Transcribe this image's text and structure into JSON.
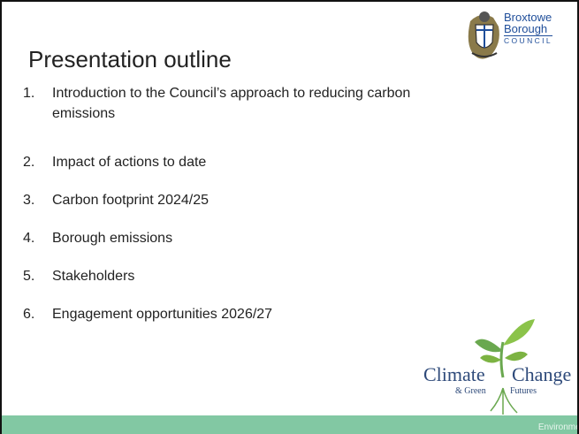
{
  "header": {
    "title": "Presentation outline"
  },
  "logo": {
    "lines": [
      "Broxtowe",
      "Borough",
      "COUNCIL"
    ]
  },
  "outline": [
    {
      "number": "1.",
      "text": "Introduction to the Council’s approach to reducing carbon emissions"
    },
    {
      "number": "2.",
      "text": "Impact of actions to date"
    },
    {
      "number": "3.",
      "text": "Carbon footprint 2024/25"
    },
    {
      "number": "4.",
      "text": "Borough emissions"
    },
    {
      "number": "5.",
      "text": "Stakeholders"
    },
    {
      "number": "6.",
      "text": "Engagement opportunities 2026/27"
    }
  ],
  "climate_logo": {
    "words": [
      "Climate",
      "Change",
      "& Green",
      "Futures"
    ]
  },
  "footer": {
    "text": "Environment"
  }
}
